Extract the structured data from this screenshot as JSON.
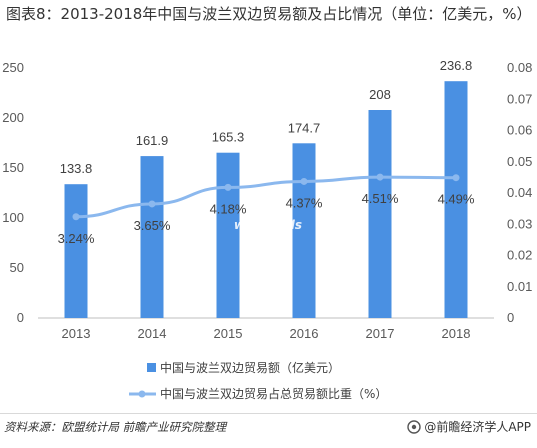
{
  "chart_data": {
    "type": "bar",
    "title": "图表8：2013-2018年中国与波兰双边贸易额及占比情况（单位：亿美元，%）",
    "categories": [
      "2013",
      "2014",
      "2015",
      "2016",
      "2017",
      "2018"
    ],
    "series": [
      {
        "name": "中国与波兰双边贸易额（亿美元）",
        "type": "bar",
        "axis": "left",
        "values": [
          133.8,
          161.9,
          165.3,
          174.7,
          208,
          236.8
        ],
        "labels": [
          "133.8",
          "161.9",
          "165.3",
          "174.7",
          "208",
          "236.8"
        ],
        "color": "#4a90e2"
      },
      {
        "name": "中国与波兰双边贸易占总贸易额比重（%）",
        "type": "line",
        "axis": "right",
        "values": [
          3.24,
          3.65,
          4.18,
          4.37,
          4.51,
          4.49
        ],
        "labels": [
          "3.24%",
          "3.65%",
          "4.18%",
          "4.37%",
          "4.51%",
          "4.49%"
        ],
        "color": "#8bb8ee"
      }
    ],
    "y_left": {
      "ylim": [
        0,
        250
      ],
      "ticks": [
        "0",
        "50",
        "100",
        "150",
        "200",
        "250"
      ]
    },
    "y_right": {
      "ylim": [
        0,
        0.08
      ],
      "ticks": [
        "0",
        "0.01",
        "0.02",
        "0.03",
        "0.04",
        "0.05",
        "0.06",
        "0.07",
        "0.08"
      ]
    },
    "grid": false,
    "legend": "bottom-left",
    "watermark": "wels tools"
  },
  "source": "资料来源：欧盟统计局 前瞻产业研究院整理",
  "brand": "@前瞻经济学人APP"
}
